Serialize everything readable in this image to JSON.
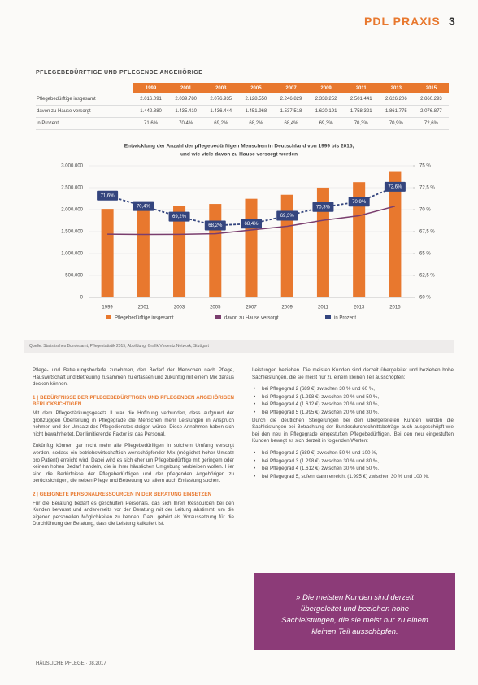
{
  "header": {
    "section": "PDL PRAXIS",
    "page": "3"
  },
  "section_title": "PFLEGEBEDÜRFTIGE UND PFLEGENDE ANGEHÖRIGE",
  "table": {
    "years": [
      "1999",
      "2001",
      "2003",
      "2005",
      "2007",
      "2009",
      "2011",
      "2013",
      "2015"
    ],
    "rows": [
      {
        "label": "Pflegebedürftige insgesamt",
        "values": [
          "2.016.091",
          "2.039.780",
          "2.076.935",
          "2.128.550",
          "2.246.829",
          "2.338.252",
          "2.501.441",
          "2.626.206",
          "2.860.293"
        ]
      },
      {
        "label": "davon zu Hause versorgt",
        "values": [
          "1.442.880",
          "1.435.410",
          "1.436.444",
          "1.451.968",
          "1.537.518",
          "1.620.191",
          "1.758.321",
          "1.861.775",
          "2.076.877"
        ]
      },
      {
        "label": "in Prozent",
        "values": [
          "71,6%",
          "70,4%",
          "69,2%",
          "68,2%",
          "68,4%",
          "69,3%",
          "70,3%",
          "70,9%",
          "72,6%"
        ]
      }
    ]
  },
  "chart_data": {
    "type": "bar",
    "title": "Entwicklung der Anzahl der pflegebedürftigen Menschen in Deutschland von 1999 bis 2015,",
    "subtitle": "und wie viele davon zu Hause versorgt werden",
    "categories": [
      "1999",
      "2001",
      "2003",
      "2005",
      "2007",
      "2009",
      "2011",
      "2013",
      "2015"
    ],
    "series": [
      {
        "name": "Pflegebedürftige insgesamt",
        "type": "bar",
        "color": "#e8782e",
        "values": [
          2016091,
          2039780,
          2076935,
          2128550,
          2246829,
          2338252,
          2501441,
          2626206,
          2860293
        ]
      },
      {
        "name": "davon zu Hause versorgt",
        "type": "line",
        "color": "#7a3e6e",
        "values": [
          1442880,
          1435410,
          1436444,
          1451968,
          1537518,
          1620191,
          1758321,
          1861775,
          2076877
        ]
      },
      {
        "name": "in Prozent",
        "type": "line",
        "axis": "y2",
        "dashed": true,
        "color": "#34457e",
        "values": [
          71.6,
          70.4,
          69.2,
          68.2,
          68.4,
          69.3,
          70.3,
          70.9,
          72.6
        ],
        "value_labels": [
          "71,6%",
          "70,4%",
          "69,2%",
          "68,2%",
          "68,4%",
          "69,3%",
          "70,3%",
          "70,9%",
          "72,6%"
        ]
      }
    ],
    "ylim": [
      0,
      3000000
    ],
    "yticks": [
      {
        "value": 0,
        "label": "0"
      },
      {
        "value": 500000,
        "label": "500.000"
      },
      {
        "value": 1000000,
        "label": "1.000.000"
      },
      {
        "value": 1500000,
        "label": "1.500.000"
      },
      {
        "value": 2000000,
        "label": "2.000.000"
      },
      {
        "value": 2500000,
        "label": "2.500.000"
      },
      {
        "value": 3000000,
        "label": "3.000.000"
      }
    ],
    "y2lim": [
      60,
      75
    ],
    "y2ticks": [
      {
        "value": 60,
        "label": "60 %"
      },
      {
        "value": 62.5,
        "label": "62,5 %"
      },
      {
        "value": 65,
        "label": "65 %"
      },
      {
        "value": 67.5,
        "label": "67,5 %"
      },
      {
        "value": 70,
        "label": "70 %"
      },
      {
        "value": 72.5,
        "label": "72,5 %"
      },
      {
        "value": 75,
        "label": "75 %"
      }
    ],
    "grid": true,
    "legend": "bottom"
  },
  "source": "Quelle: Statistisches Bundesamt, Pflegestatistik 2015; Abbildung: Grafik Vincentz Network, Stuttgart",
  "columns": [
    [
      {
        "kind": "p",
        "text": "Pflege- und Betreuungsbedarfe zunehmen, den Bedarf der Menschen nach Pflege, Hauswirtschaft und Betreuung zusammen zu erfassen und zukünftig mit einem Mix daraus decken können."
      },
      {
        "kind": "h",
        "text": "1 | BEDÜRFNISSE DER PFLEGEBEDÜRFTIGEN UND PFLEGENDEN ANGEHÖRIGEN BERÜCKSICHTIGEN"
      },
      {
        "kind": "p",
        "text": "Mit dem Pflegestärkungsgesetz II war die Hoffnung verbunden, dass aufgrund der großzügigen Überleitung in Pflegegrade die Menschen mehr Leistungen in Anspruch nehmen und der Umsatz des Pflegedienstes steigen würde. Diese Annahmen haben sich nicht bewahrheitet. Der limitierende Faktor ist das Personal."
      },
      {
        "kind": "p",
        "text": "Zukünftig können gar nicht mehr alle Pflegebedürftigen in solchem Umfang versorgt werden, sodass ein betriebswirtschaftlich wertschöpfender Mix (möglichst hoher Umsatz pro Patient) erreicht wird. Dabei wird es sich eher um Pflegebedürftige mit geringem oder keinem hohen Bedarf handeln, die in ihrer häuslichen Umgebung verbleiben wollen. Hier sind die Bedürfnisse der Pflegebedürftigen und der pflegenden Angehörigen zu berücksichtigen, die neben Pflege und Betreuung vor allem auch Entlastung suchen."
      },
      {
        "kind": "h",
        "text": "2 | GEEIGNETE PERSONALRESSOURCEN IN DER BERATUNG EINSETZEN"
      },
      {
        "kind": "p",
        "text": "Für die Beratung bedarf es geschulten Personals, das sich Ihren Ressourcen bei den Kunden bewusst und andererseits vor der Beratung mit der Leitung abstimmt, um die eigenen personellen Möglichkeiten zu kennen. Dazu gehört als Voraussetzung für die Durchführung der Beratung, dass die Leistung kalkuliert ist."
      }
    ],
    [
      {
        "kind": "p",
        "text": "Leistungen beziehen. Die meisten Kunden sind derzeit übergeleitet und beziehen hohe Sachleistungen, die sie meist nur zu einem kleinen Teil ausschöpfen:"
      },
      {
        "kind": "li",
        "text": "bei Pflegegrad 2 (689 €) zwischen 30 % und 60 %,"
      },
      {
        "kind": "li",
        "text": "bei Pflegegrad 3 (1.298 €) zwischen 30 % und 50 %,"
      },
      {
        "kind": "li",
        "text": "bei Pflegegrad 4 (1.612 €) zwischen 20 % und 30 %,"
      },
      {
        "kind": "li",
        "text": "bei Pflegegrad 5 (1.995 €) zwischen 20 % und 30 %."
      },
      {
        "kind": "p",
        "text": "Durch die deutlichen Steigerungen bei den übergeleiteten Kunden werden die Sachleistungen bei Betrachtung der Bundesdurchschnittsbeträge auch ausgeschöpft wie bei den neu in Pflegegrade eingestuften Pflegebedürftigen. Bei den neu eingestuften Kunden bewegt es sich derzeit in folgenden Werten:"
      },
      {
        "kind": "li",
        "text": "bei Pflegegrad 2 (689 €) zwischen 50 % und 100 %,"
      },
      {
        "kind": "li",
        "text": "bei Pflegegrad 3 (1.298 €) zwischen 30 % und 80 %,"
      },
      {
        "kind": "li",
        "text": "bei Pflegegrad 4 (1.612 €) zwischen 30 % und 50 %,"
      },
      {
        "kind": "li",
        "text": "bei Pflegegrad 5, sofern dann erreicht (1.995 €) zwischen 30 % und 100 %."
      }
    ]
  ],
  "quote": "» Die meisten Kunden sind derzeit übergeleitet und beziehen hohe Sachleistungen, die sie meist nur zu einem kleinen Teil ausschöpfen.",
  "footer": "HÄUSLICHE PFLEGE · 08.2017"
}
